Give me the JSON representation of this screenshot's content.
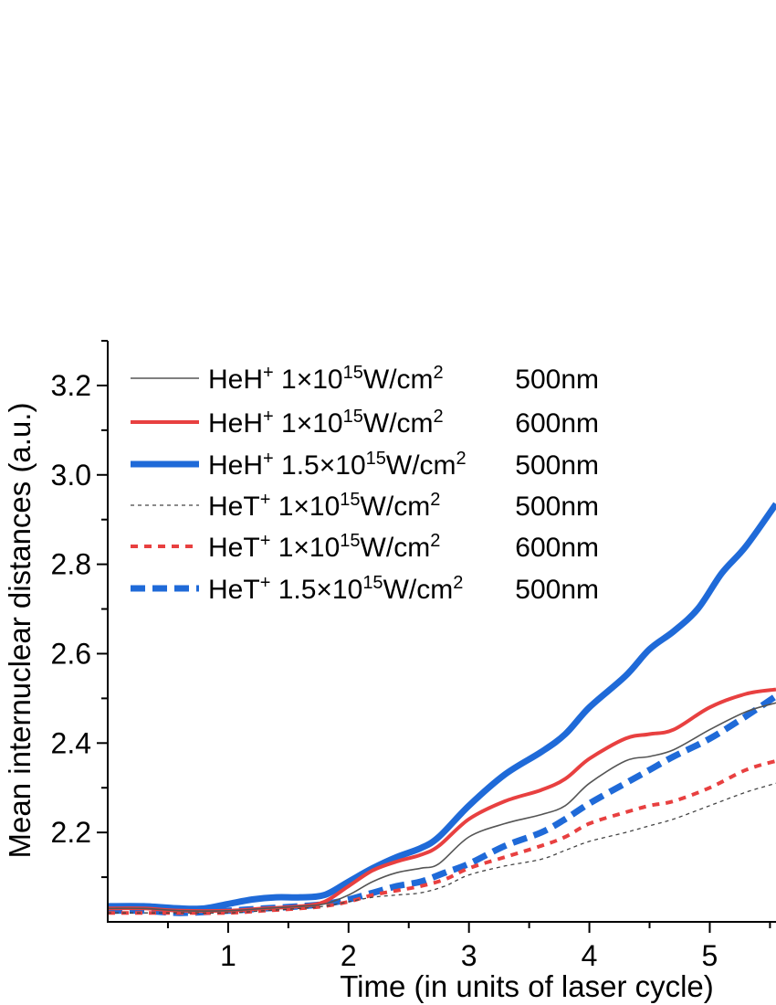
{
  "chart_data": {
    "type": "line",
    "xlabel": "Time (in units of laser cycle)",
    "ylabel": "Mean internuclear distances (a.u.)",
    "xlim": [
      0,
      5.55
    ],
    "ylim": [
      2.0,
      3.3
    ],
    "xticks": [
      1,
      2,
      3,
      4,
      5
    ],
    "yticks": [
      2.2,
      2.4,
      2.6,
      2.8,
      3.0,
      3.2
    ],
    "xtick_labels": [
      "1",
      "2",
      "3",
      "4",
      "5"
    ],
    "ytick_labels": [
      "2.2",
      "2.4",
      "2.6",
      "2.8",
      "3.0",
      "3.2"
    ],
    "legend_position": "top-left",
    "grid": false,
    "series": [
      {
        "name": "HeH+ 1×10^15W/cm^2 500nm",
        "legend": {
          "species": "HeH",
          "charge": "+",
          "intensity_base": "1×10",
          "intensity_exp": "15",
          "unit": "W/cm",
          "unit_exp": "2",
          "wavelength": "500nm"
        },
        "color": "#555555",
        "width": 1.6,
        "dash": "",
        "x": [
          0,
          0.3,
          0.6,
          1.0,
          1.3,
          1.6,
          1.8,
          2.0,
          2.2,
          2.4,
          2.6,
          2.75,
          3.0,
          3.3,
          3.6,
          3.8,
          4.0,
          4.3,
          4.5,
          4.7,
          5.0,
          5.3,
          5.55
        ],
        "y": [
          2.03,
          2.03,
          2.025,
          2.025,
          2.03,
          2.035,
          2.04,
          2.06,
          2.09,
          2.11,
          2.12,
          2.13,
          2.19,
          2.22,
          2.24,
          2.26,
          2.31,
          2.36,
          2.37,
          2.385,
          2.43,
          2.47,
          2.49
        ]
      },
      {
        "name": "HeH+ 1×10^15W/cm^2 600nm",
        "legend": {
          "species": "HeH",
          "charge": "+",
          "intensity_base": "1×10",
          "intensity_exp": "15",
          "unit": "W/cm",
          "unit_exp": "2",
          "wavelength": "600nm"
        },
        "color": "#e84040",
        "width": 4,
        "dash": "",
        "x": [
          0,
          0.3,
          0.6,
          1.0,
          1.3,
          1.6,
          1.8,
          2.0,
          2.2,
          2.4,
          2.6,
          2.75,
          3.0,
          3.3,
          3.6,
          3.8,
          4.0,
          4.3,
          4.5,
          4.7,
          5.0,
          5.3,
          5.55
        ],
        "y": [
          2.03,
          2.03,
          2.025,
          2.025,
          2.03,
          2.035,
          2.045,
          2.08,
          2.115,
          2.135,
          2.15,
          2.17,
          2.23,
          2.27,
          2.295,
          2.32,
          2.365,
          2.41,
          2.42,
          2.43,
          2.48,
          2.51,
          2.52
        ]
      },
      {
        "name": "HeH+ 1.5×10^15W/cm^2 500nm",
        "legend": {
          "species": "HeH",
          "charge": "+",
          "intensity_base": "1.5×10",
          "intensity_exp": "15",
          "unit": "W/cm",
          "unit_exp": "2",
          "wavelength": "500nm"
        },
        "color": "#1f6ad8",
        "width": 7,
        "dash": "",
        "x": [
          0,
          0.3,
          0.6,
          0.8,
          1.0,
          1.2,
          1.4,
          1.6,
          1.8,
          2.0,
          2.2,
          2.4,
          2.6,
          2.75,
          3.0,
          3.3,
          3.6,
          3.8,
          4.0,
          4.3,
          4.5,
          4.7,
          4.9,
          5.1,
          5.3,
          5.55
        ],
        "y": [
          2.035,
          2.035,
          2.03,
          2.03,
          2.04,
          2.05,
          2.055,
          2.055,
          2.06,
          2.09,
          2.12,
          2.145,
          2.165,
          2.19,
          2.26,
          2.33,
          2.38,
          2.42,
          2.48,
          2.55,
          2.61,
          2.65,
          2.7,
          2.78,
          2.84,
          2.935
        ]
      },
      {
        "name": "HeT+ 1×10^15W/cm^2 500nm",
        "legend": {
          "species": "HeT",
          "charge": "+",
          "intensity_base": "1×10",
          "intensity_exp": "15",
          "unit": "W/cm",
          "unit_exp": "2",
          "wavelength": "500nm"
        },
        "color": "#444444",
        "width": 1.3,
        "dash": "4 4",
        "x": [
          0,
          0.3,
          0.6,
          1.0,
          1.3,
          1.6,
          1.8,
          2.0,
          2.2,
          2.4,
          2.6,
          2.8,
          3.0,
          3.3,
          3.6,
          3.8,
          4.0,
          4.3,
          4.5,
          4.7,
          5.0,
          5.3,
          5.55
        ],
        "y": [
          2.02,
          2.02,
          2.02,
          2.02,
          2.025,
          2.03,
          2.035,
          2.045,
          2.055,
          2.06,
          2.065,
          2.08,
          2.105,
          2.125,
          2.14,
          2.16,
          2.18,
          2.2,
          2.215,
          2.23,
          2.26,
          2.29,
          2.31
        ]
      },
      {
        "name": "HeT+ 1×10^15W/cm^2 600nm",
        "legend": {
          "species": "HeT",
          "charge": "+",
          "intensity_base": "1×10",
          "intensity_exp": "15",
          "unit": "W/cm",
          "unit_exp": "2",
          "wavelength": "600nm"
        },
        "color": "#e84040",
        "width": 4,
        "dash": "8 7",
        "x": [
          0,
          0.3,
          0.6,
          1.0,
          1.3,
          1.6,
          1.8,
          2.0,
          2.2,
          2.4,
          2.6,
          2.8,
          3.0,
          3.3,
          3.6,
          3.8,
          4.0,
          4.3,
          4.5,
          4.7,
          5.0,
          5.3,
          5.55
        ],
        "y": [
          2.02,
          2.02,
          2.02,
          2.02,
          2.025,
          2.03,
          2.035,
          2.045,
          2.06,
          2.07,
          2.08,
          2.095,
          2.12,
          2.145,
          2.17,
          2.19,
          2.22,
          2.245,
          2.26,
          2.27,
          2.3,
          2.34,
          2.36
        ]
      },
      {
        "name": "HeT+ 1.5×10^15W/cm^2 500nm",
        "legend": {
          "species": "HeT",
          "charge": "+",
          "intensity_base": "1.5×10",
          "intensity_exp": "15",
          "unit": "W/cm",
          "unit_exp": "2",
          "wavelength": "500nm"
        },
        "color": "#1f6ad8",
        "width": 7,
        "dash": "16 8",
        "x": [
          0,
          0.3,
          0.6,
          1.0,
          1.3,
          1.6,
          1.8,
          2.0,
          2.2,
          2.4,
          2.6,
          2.8,
          3.0,
          3.3,
          3.6,
          3.8,
          4.0,
          4.3,
          4.5,
          4.7,
          5.0,
          5.3,
          5.55
        ],
        "y": [
          2.025,
          2.025,
          2.02,
          2.025,
          2.03,
          2.035,
          2.04,
          2.05,
          2.065,
          2.08,
          2.09,
          2.11,
          2.13,
          2.17,
          2.2,
          2.23,
          2.265,
          2.31,
          2.34,
          2.37,
          2.41,
          2.46,
          2.505
        ]
      }
    ]
  }
}
